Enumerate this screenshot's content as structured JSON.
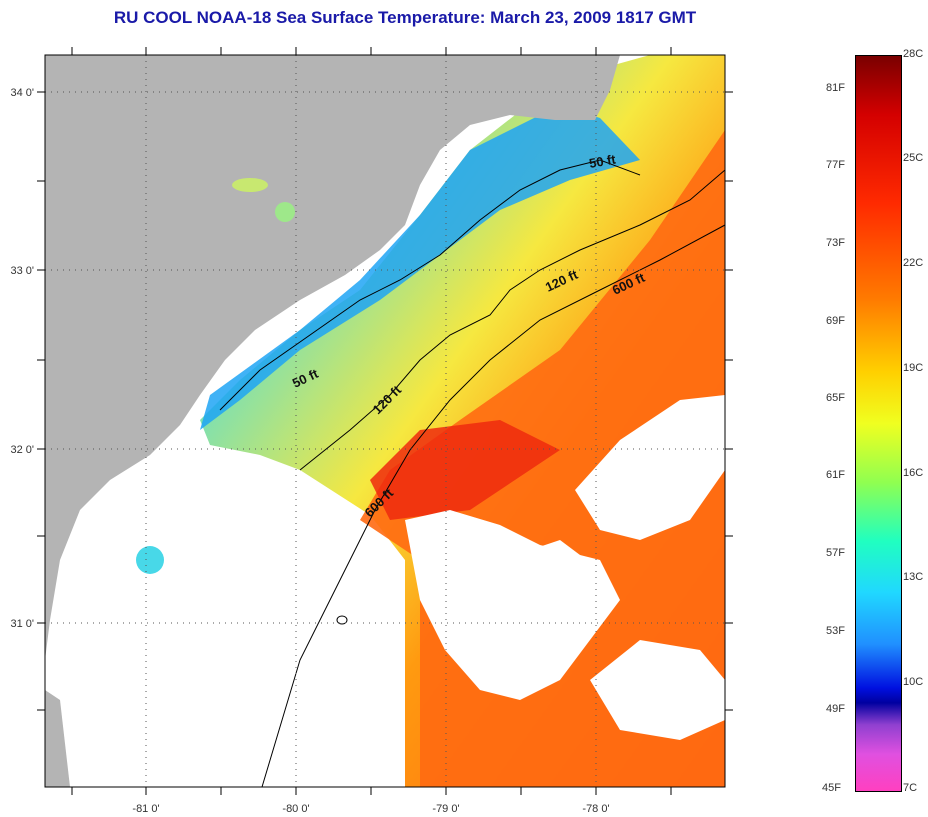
{
  "title": "RU COOL  NOAA-18  Sea Surface Temperature:  March 23, 2009 1817 GMT",
  "axes": {
    "lon_labels": [
      "-81 0'",
      "-80 0'",
      "-79 0'",
      "-78 0'"
    ],
    "lat_labels": [
      "34 0'",
      "33 0'",
      "32 0'",
      "31 0'"
    ]
  },
  "contours": {
    "c50a": "50 ft",
    "c50b": "50 ft",
    "c120a": "120 ft",
    "c120b": "120 ft",
    "c600a": "600 ft",
    "c600b": "600 ft"
  },
  "colorbar": {
    "fahrenheit": [
      "81F",
      "77F",
      "73F",
      "69F",
      "65F",
      "61F",
      "57F",
      "53F",
      "49F",
      "45F"
    ],
    "celsius": [
      "28C",
      "25C",
      "22C",
      "19C",
      "16C",
      "13C",
      "10C",
      "7C"
    ]
  },
  "colors": {
    "land": "#b4b4b4",
    "cloud": "#ffffff",
    "title": "#1a1aa8"
  }
}
